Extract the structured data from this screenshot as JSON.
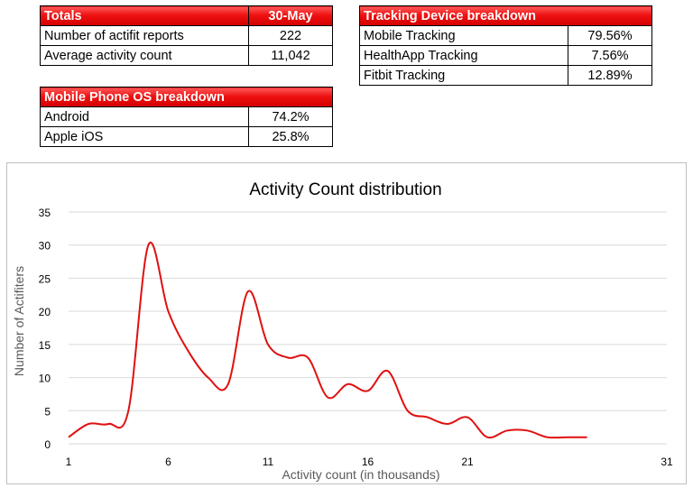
{
  "totals": {
    "header": "Totals",
    "date": "30-May",
    "rows": [
      {
        "label": "Number of actifit reports",
        "value": "222"
      },
      {
        "label": "Average activity count",
        "value": "11,042"
      }
    ]
  },
  "tracking": {
    "header": "Tracking Device breakdown",
    "rows": [
      {
        "label": "Mobile Tracking",
        "value": "79.56%"
      },
      {
        "label": "HealthApp Tracking",
        "value": "7.56%"
      },
      {
        "label": "Fitbit Tracking",
        "value": "12.89%"
      }
    ]
  },
  "os": {
    "header": "Mobile Phone OS breakdown",
    "rows": [
      {
        "label": "Android",
        "value": "74.2%"
      },
      {
        "label": "Apple iOS",
        "value": "25.8%"
      }
    ]
  },
  "colors": {
    "header_red": "#e00000",
    "line": "#e01010",
    "grid": "#d9d9d9"
  },
  "chart_data": {
    "type": "line",
    "title": "Activity Count distribution",
    "xlabel": "Activity count (in thousands)",
    "ylabel": "Number of Actifiters",
    "xlim": [
      1,
      31
    ],
    "ylim": [
      0,
      35
    ],
    "xticks": [
      1,
      6,
      11,
      16,
      21,
      31
    ],
    "yticks": [
      0,
      5,
      10,
      15,
      20,
      25,
      30,
      35
    ],
    "grid": true,
    "smooth": true,
    "series": [
      {
        "x": [
          1,
          2,
          3,
          4,
          5,
          6,
          7,
          8,
          9,
          10,
          11,
          12,
          13,
          14,
          15,
          16,
          17,
          18,
          19,
          20,
          21,
          22,
          23,
          24,
          25,
          26,
          27,
          28,
          29,
          30,
          31
        ],
        "values": [
          1,
          3,
          3,
          5,
          30,
          20,
          14,
          10,
          9,
          23,
          15,
          13,
          13,
          7,
          9,
          8,
          11,
          5,
          4,
          3,
          4,
          1,
          2,
          2,
          1,
          1,
          1,
          null,
          null,
          null,
          null
        ]
      }
    ]
  }
}
